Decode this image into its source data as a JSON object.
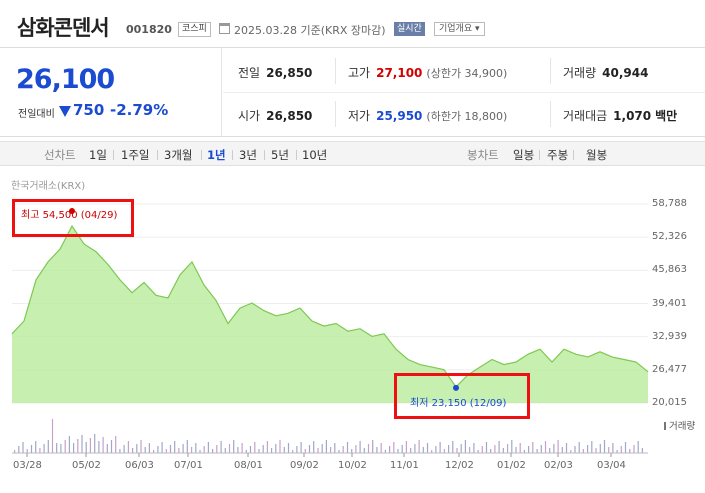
{
  "header": {
    "name": "삼화콘덴서",
    "code": "001820",
    "market": "코스피",
    "date": "2025.03.28 기준(KRX 장마감)",
    "realtime": "실시간",
    "corp_info": "기업개요"
  },
  "quote": {
    "price": "26,100",
    "change_label": "전일대비",
    "change": "750",
    "change_pct": "-2.79%",
    "prev_label": "전일",
    "prev": "26,850",
    "high_label": "고가",
    "high": "27,100",
    "high_sub": "(상한가 34,900)",
    "volume_label": "거래량",
    "volume": "40,944",
    "open_label": "시가",
    "open": "26,850",
    "low_label": "저가",
    "low": "25,950",
    "low_sub": "(하한가 18,800)",
    "amount_label": "거래대금",
    "amount": "1,070",
    "amount_unit": "백만"
  },
  "periods": {
    "line_label": "선차트",
    "items": [
      "1일",
      "1주일",
      "3개월",
      "1년",
      "3년",
      "5년",
      "10년"
    ],
    "selected": "1년",
    "candle_label": "봉차트",
    "candle_items": [
      "일봉",
      "주봉",
      "월봉"
    ]
  },
  "source": "한국거래소(KRX)",
  "annotations": {
    "max_text": "최고 54,500 (04/29)",
    "min_text": "최저 23,150 (12/09)"
  },
  "volume_legend": "거래량",
  "colors": {
    "up": "#d40000",
    "down": "#1b4bd1",
    "area": "#b4eb96",
    "line": "#7dc850",
    "highlight": "#ee1111"
  },
  "chart_data": {
    "type": "area",
    "yticks": [
      "58,788",
      "52,326",
      "45,863",
      "39,401",
      "32,939",
      "26,477",
      "20,015"
    ],
    "ylim": [
      20015,
      58788
    ],
    "xticks": [
      "03/28",
      "05/02",
      "06/03",
      "07/01",
      "08/01",
      "09/02",
      "10/02",
      "11/01",
      "12/02",
      "01/02",
      "02/03",
      "03/04"
    ],
    "x": [
      "03/28",
      "04/03",
      "04/09",
      "04/15",
      "04/22",
      "04/29",
      "05/06",
      "05/13",
      "05/20",
      "05/27",
      "06/03",
      "06/10",
      "06/17",
      "06/24",
      "07/01",
      "07/08",
      "07/15",
      "07/22",
      "07/29",
      "08/05",
      "08/12",
      "08/19",
      "08/26",
      "09/02",
      "09/09",
      "09/16",
      "09/23",
      "09/30",
      "10/07",
      "10/14",
      "10/21",
      "10/28",
      "11/04",
      "11/11",
      "11/18",
      "11/25",
      "12/02",
      "12/09",
      "12/16",
      "12/23",
      "12/30",
      "01/06",
      "01/13",
      "01/20",
      "01/27",
      "02/03",
      "02/10",
      "02/17",
      "02/24",
      "03/04",
      "03/11",
      "03/18",
      "03/25",
      "03/28"
    ],
    "values": [
      33500,
      36000,
      44000,
      47500,
      50000,
      54500,
      51000,
      49500,
      47000,
      44000,
      41500,
      43500,
      41000,
      40500,
      45000,
      47500,
      43000,
      40000,
      35500,
      38500,
      39500,
      38000,
      37000,
      37500,
      38500,
      36000,
      35000,
      35500,
      34000,
      34500,
      33000,
      33500,
      30500,
      28500,
      27500,
      27000,
      26500,
      23150,
      25500,
      27000,
      28500,
      27500,
      28000,
      29500,
      30500,
      28000,
      30500,
      29500,
      29000,
      30000,
      29000,
      28500,
      28000,
      26100
    ],
    "volume_note": "relative volume bars"
  }
}
